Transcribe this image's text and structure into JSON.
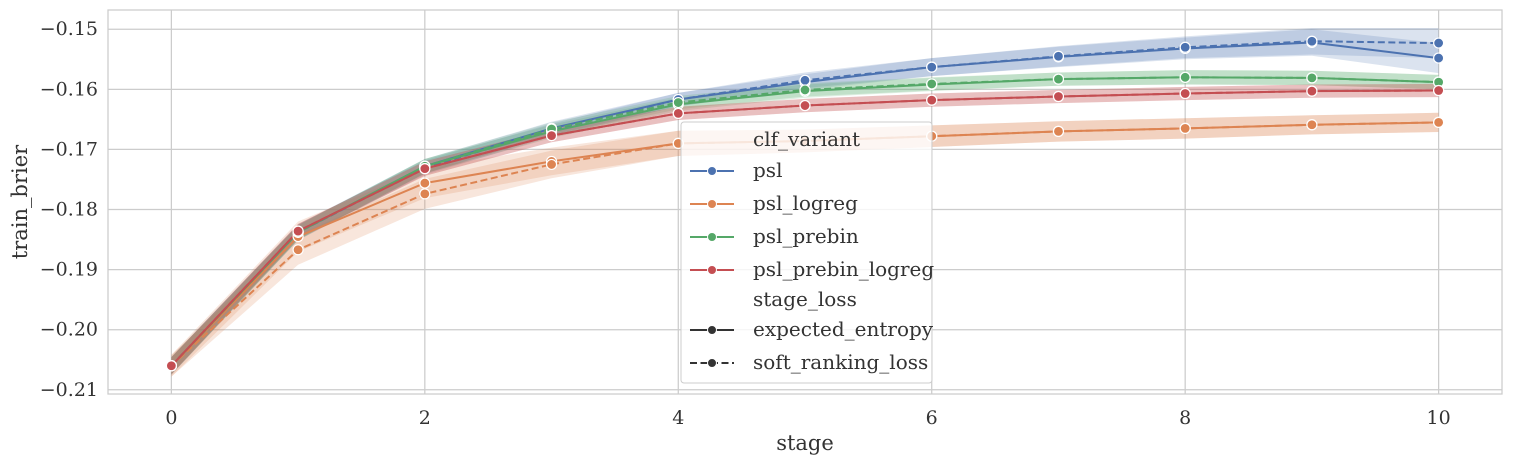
{
  "chart_data": {
    "type": "line",
    "xlabel": "stage",
    "ylabel": "train_brier",
    "xlim": [
      -0.5,
      10.5
    ],
    "ylim": [
      -0.2107,
      -0.1468
    ],
    "x_ticks": [
      0,
      2,
      4,
      6,
      8,
      10
    ],
    "y_ticks": [
      -0.15,
      -0.16,
      -0.17,
      -0.18,
      -0.19,
      -0.2,
      -0.21
    ],
    "x_tick_labels": [
      "0",
      "2",
      "4",
      "6",
      "8",
      "10"
    ],
    "y_tick_labels": [
      "−0.15",
      "−0.16",
      "−0.17",
      "−0.18",
      "−0.19",
      "−0.20",
      "−0.21"
    ],
    "grid": true,
    "legend_position": "center",
    "legend": {
      "hue_title": "clf_variant",
      "style_title": "stage_loss",
      "hue_entries": [
        {
          "label": "psl",
          "color": "#4c72b0"
        },
        {
          "label": "psl_logreg",
          "color": "#dd8452"
        },
        {
          "label": "psl_prebin",
          "color": "#55a868"
        },
        {
          "label": "psl_prebin_logreg",
          "color": "#c44e52"
        }
      ],
      "style_entries": [
        {
          "label": "expected_entropy",
          "dash": "solid"
        },
        {
          "label": "soft_ranking_loss",
          "dash": "dashed"
        }
      ]
    },
    "x": [
      0,
      1,
      2,
      3,
      4,
      5,
      6,
      7,
      8,
      9,
      10
    ],
    "series": [
      {
        "name": "psl",
        "style": "expected_entropy",
        "color": "#4c72b0",
        "values": [
          -0.206,
          -0.1838,
          -0.1728,
          -0.1665,
          -0.1617,
          -0.1588,
          -0.1563,
          -0.1546,
          -0.1532,
          -0.1522,
          -0.1548
        ],
        "band": [
          0.0015,
          0.0013,
          0.0012,
          0.0011,
          0.0011,
          0.0013,
          0.0015,
          0.0017,
          0.0018,
          0.0022,
          0.0025
        ]
      },
      {
        "name": "psl",
        "style": "soft_ranking_loss",
        "color": "#4c72b0",
        "values": [
          -0.206,
          -0.1838,
          -0.173,
          -0.1668,
          -0.1617,
          -0.1585,
          -0.1563,
          -0.1545,
          -0.153,
          -0.152,
          -0.1523
        ],
        "band": [
          0.0015,
          0.0013,
          0.0012,
          0.0011,
          0.0011,
          0.0013,
          0.0015,
          0.0017,
          0.0018,
          0.0022,
          0.0025
        ]
      },
      {
        "name": "psl_logreg",
        "style": "expected_entropy",
        "color": "#dd8452",
        "values": [
          -0.206,
          -0.1845,
          -0.1756,
          -0.172,
          -0.169,
          -0.1686,
          -0.1678,
          -0.167,
          -0.1665,
          -0.1659,
          -0.1655
        ],
        "band": [
          0.0018,
          0.0025,
          0.0025,
          0.0023,
          0.0021,
          0.0019,
          0.0018,
          0.0017,
          0.0017,
          0.0016,
          0.0016
        ]
      },
      {
        "name": "psl_logreg",
        "style": "soft_ranking_loss",
        "color": "#dd8452",
        "values": [
          -0.206,
          -0.1867,
          -0.1774,
          -0.1725,
          -0.169,
          -0.1686,
          -0.1678,
          -0.167,
          -0.1665,
          -0.1659,
          -0.1655
        ],
        "band": [
          0.0018,
          0.0025,
          0.0025,
          0.0023,
          0.0021,
          0.0019,
          0.0018,
          0.0017,
          0.0017,
          0.0016,
          0.0016
        ]
      },
      {
        "name": "psl_prebin",
        "style": "expected_entropy",
        "color": "#55a868",
        "values": [
          -0.206,
          -0.1838,
          -0.1728,
          -0.167,
          -0.1625,
          -0.1603,
          -0.1592,
          -0.1583,
          -0.158,
          -0.1581,
          -0.1588
        ],
        "band": [
          0.0014,
          0.0012,
          0.0012,
          0.0011,
          0.0011,
          0.0011,
          0.0011,
          0.0011,
          0.0012,
          0.0012,
          0.0012
        ]
      },
      {
        "name": "psl_prebin",
        "style": "soft_ranking_loss",
        "color": "#55a868",
        "values": [
          -0.206,
          -0.1838,
          -0.1728,
          -0.1666,
          -0.1622,
          -0.1601,
          -0.1591,
          -0.1583,
          -0.158,
          -0.1581,
          -0.1588
        ],
        "band": [
          0.0014,
          0.0012,
          0.0012,
          0.0011,
          0.0011,
          0.0011,
          0.0011,
          0.0011,
          0.0012,
          0.0012,
          0.0012
        ]
      },
      {
        "name": "psl_prebin_logreg",
        "style": "expected_entropy",
        "color": "#c44e52",
        "values": [
          -0.206,
          -0.1836,
          -0.1732,
          -0.1677,
          -0.164,
          -0.1627,
          -0.1618,
          -0.1612,
          -0.1607,
          -0.1603,
          -0.1602
        ],
        "band": [
          0.0014,
          0.0012,
          0.0012,
          0.0011,
          0.0011,
          0.0011,
          0.0011,
          0.0011,
          0.0011,
          0.0011,
          0.0011
        ]
      },
      {
        "name": "psl_prebin_logreg",
        "style": "soft_ranking_loss",
        "color": "#c44e52",
        "values": [
          -0.206,
          -0.1836,
          -0.1732,
          -0.1677,
          -0.164,
          -0.1627,
          -0.1618,
          -0.1612,
          -0.1607,
          -0.1603,
          -0.1602
        ],
        "band": [
          0.0014,
          0.0012,
          0.0012,
          0.0011,
          0.0011,
          0.0011,
          0.0011,
          0.0011,
          0.0011,
          0.0011,
          0.0011
        ]
      }
    ]
  }
}
